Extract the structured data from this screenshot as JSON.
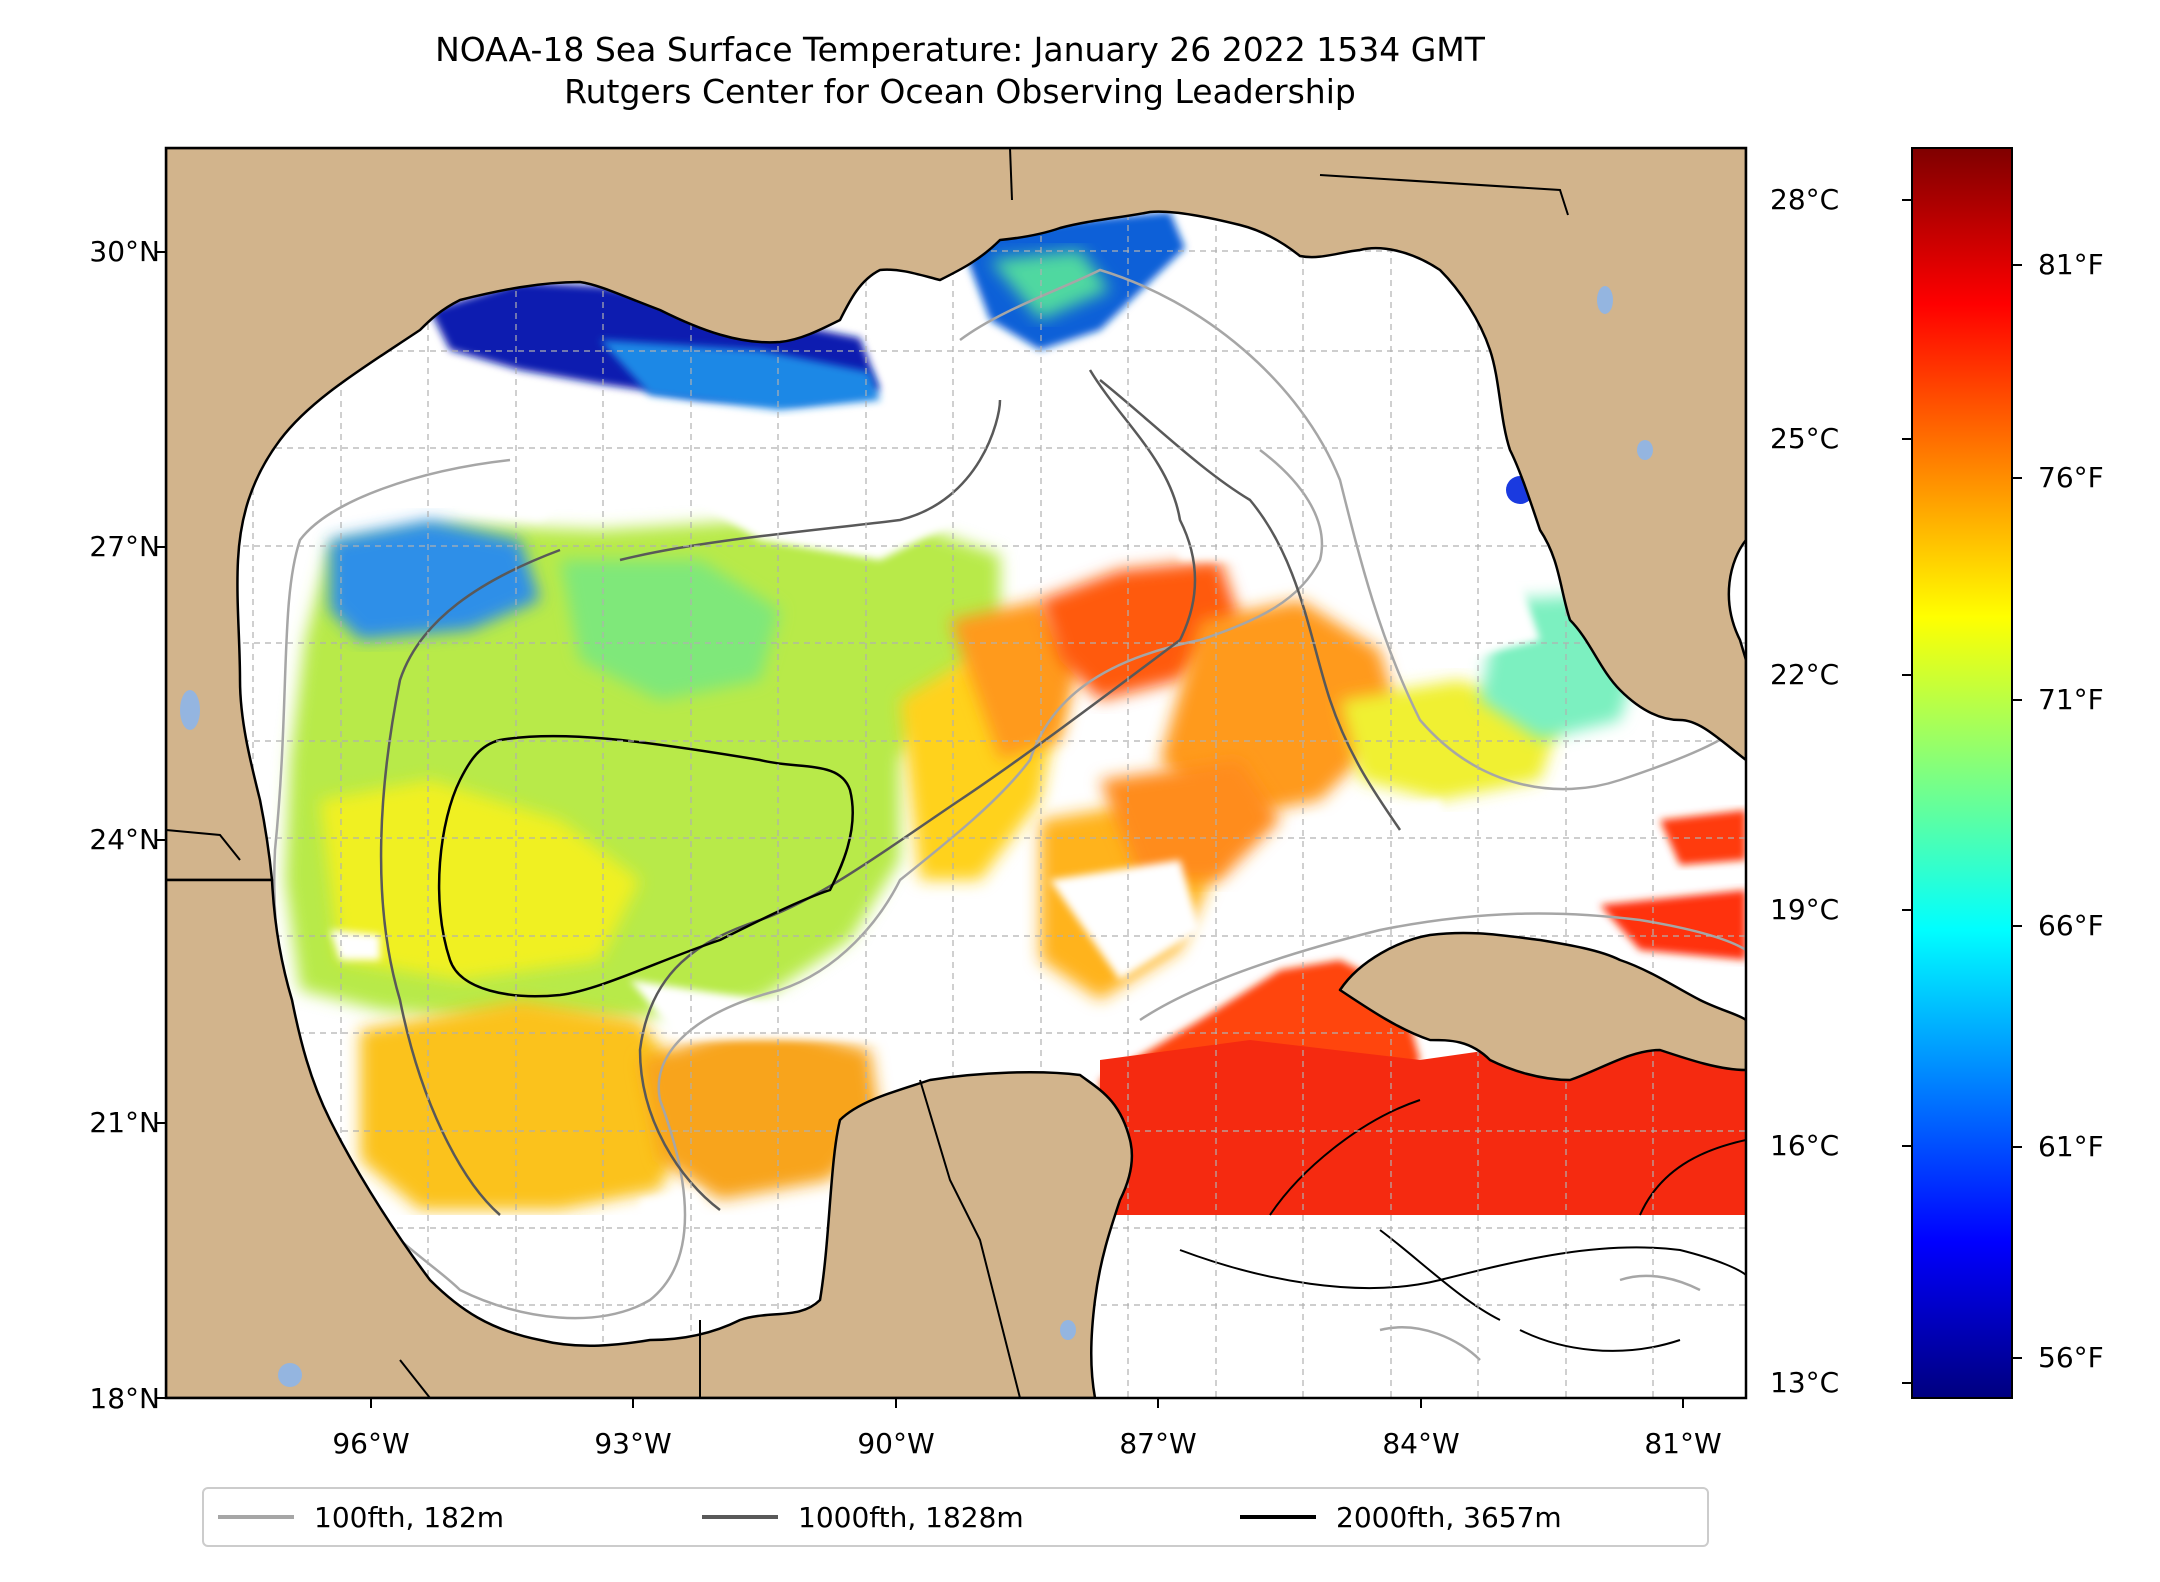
{
  "title": "NOAA-18 Sea Surface Temperature: January 26 2022 1534 GMT",
  "subtitle": "Rutgers Center for Ocean Observing Leadership",
  "colors": {
    "land": "#d2b48c",
    "ocean": "#ffffff",
    "cloud_masked": "#ffffff",
    "grid": "#b0b0b0",
    "contour_100": "#a6a6a6",
    "contour_1000": "#595959",
    "contour_2000": "#000000"
  },
  "map": {
    "lon_range": [
      -98.3,
      -80.2
    ],
    "lat_range": [
      18.0,
      31.0
    ],
    "lat_ticks": [
      {
        "value": 18,
        "label": "18°N"
      },
      {
        "value": 21,
        "label": "21°N"
      },
      {
        "value": 24,
        "label": "24°N"
      },
      {
        "value": 27,
        "label": "27°N"
      },
      {
        "value": 30,
        "label": "30°N"
      }
    ],
    "lon_ticks": [
      {
        "value": -96,
        "label": "96°W"
      },
      {
        "value": -93,
        "label": "93°W"
      },
      {
        "value": -90,
        "label": "90°W"
      },
      {
        "value": -87,
        "label": "87°W"
      },
      {
        "value": -84,
        "label": "84°W"
      },
      {
        "value": -81,
        "label": "81°W"
      }
    ]
  },
  "colorbar": {
    "colormap": "jet",
    "range_c": [
      12.8,
      29.0
    ],
    "celsius_ticks": [
      {
        "value": 13,
        "label": "13°C"
      },
      {
        "value": 16,
        "label": "16°C"
      },
      {
        "value": 19,
        "label": "19°C"
      },
      {
        "value": 22,
        "label": "22°C"
      },
      {
        "value": 25,
        "label": "25°C"
      },
      {
        "value": 28,
        "label": "28°C"
      }
    ],
    "fahrenheit_ticks": [
      {
        "value": 56,
        "label": "56°F"
      },
      {
        "value": 61,
        "label": "61°F"
      },
      {
        "value": 66,
        "label": "66°F"
      },
      {
        "value": 71,
        "label": "71°F"
      },
      {
        "value": 76,
        "label": "76°F"
      },
      {
        "value": 81,
        "label": "81°F"
      }
    ]
  },
  "legend": {
    "placement": "below",
    "items": [
      {
        "label": "100fth, 182m",
        "color": "#a6a6a6"
      },
      {
        "label": "1000fth, 1828m",
        "color": "#595959"
      },
      {
        "label": "2000fth, 3657m",
        "color": "#000000"
      }
    ]
  }
}
